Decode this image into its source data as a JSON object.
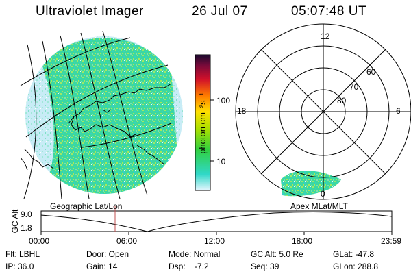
{
  "header": {
    "title": "Ultraviolet Imager",
    "date": "26 Jul 07",
    "time": "05:07:48 UT"
  },
  "colorbar": {
    "label": "photon cm⁻²s⁻¹",
    "ticks": [
      "100",
      "10"
    ],
    "colors": [
      "#1a0a2e",
      "#7a0a3a",
      "#d0102a",
      "#ff7a00",
      "#ffe000",
      "#a8e000",
      "#30d040",
      "#30d8c8",
      "#e6f6ff"
    ]
  },
  "polar": {
    "mlt_labels": {
      "top": "12",
      "left": "18",
      "right": "6",
      "bottom": "0"
    },
    "lat_labels": [
      "60",
      "70",
      "80"
    ]
  },
  "labels": {
    "geo": "Geographic Lat/Lon",
    "apex": "Apex MLat/MLT"
  },
  "altplot": {
    "ylabel": "GC Alt",
    "yticks": [
      "9.0",
      "1.8"
    ],
    "xticks": [
      "00:00",
      "06:00",
      "12:00",
      "18:00",
      "23:59"
    ],
    "marker_color": "#c05050"
  },
  "info": {
    "flt": "Flt: LBHL",
    "ip": "IP: 36.0",
    "door": "Door: Open",
    "gain": "Gain: 14",
    "mode": "Mode: Normal",
    "dsp": "Dsp:    -7.2",
    "gcalt": "GC Alt: 5.0 Re",
    "seq": "Seq: 39",
    "glat": "GLat: -47.8",
    "glon": "GLon: 288.8"
  }
}
